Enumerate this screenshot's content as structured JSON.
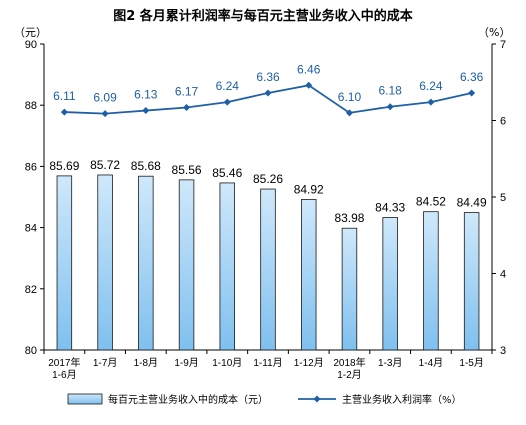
{
  "chart_data": {
    "type": "bar+line",
    "title": "图2  各月累计利润率与每百元主营业务收入中的成本",
    "y_left_unit": "（元）",
    "y_right_unit": "（%）",
    "y_left_range": [
      80,
      90
    ],
    "y_left_ticks": [
      "80",
      "82",
      "84",
      "86",
      "88",
      "90"
    ],
    "y_right_range": [
      3,
      7
    ],
    "y_right_ticks": [
      "3",
      "4",
      "5",
      "6",
      "7"
    ],
    "categories": [
      [
        "2017年",
        "1-6月"
      ],
      [
        "1-7月"
      ],
      [
        "1-8月"
      ],
      [
        "1-9月"
      ],
      [
        "1-10月"
      ],
      [
        "1-11月"
      ],
      [
        "1-12月"
      ],
      [
        "2018年",
        "1-2月"
      ],
      [
        "1-3月"
      ],
      [
        "1-4月"
      ],
      [
        "1-5月"
      ]
    ],
    "series": [
      {
        "name": "每百元主营业务收入中的成本（元）",
        "type": "bar",
        "axis": "left",
        "values": [
          85.69,
          85.72,
          85.68,
          85.56,
          85.46,
          85.26,
          84.92,
          83.98,
          84.33,
          84.52,
          84.49
        ],
        "labels": [
          "85.69",
          "85.72",
          "85.68",
          "85.56",
          "85.46",
          "85.26",
          "84.92",
          "83.98",
          "84.33",
          "84.52",
          "84.49"
        ]
      },
      {
        "name": "主营业务收入利润率（%）",
        "type": "line",
        "axis": "right",
        "values": [
          6.11,
          6.09,
          6.13,
          6.17,
          6.24,
          6.36,
          6.46,
          6.1,
          6.18,
          6.24,
          6.36
        ],
        "labels": [
          "6.11",
          "6.09",
          "6.13",
          "6.17",
          "6.24",
          "6.36",
          "6.46",
          "6.10",
          "6.18",
          "6.24",
          "6.36"
        ]
      }
    ],
    "colors": {
      "bar_fill_top": "#cfe8fb",
      "bar_fill_bottom": "#7fc0ef",
      "bar_stroke": "#1a1a1a",
      "line": "#1f5fa8"
    },
    "legend_position": "bottom",
    "grid": false
  }
}
